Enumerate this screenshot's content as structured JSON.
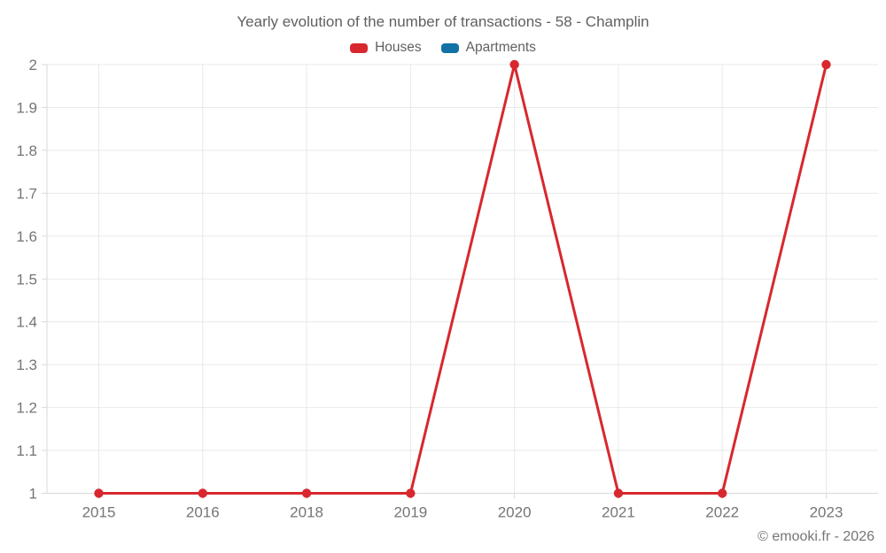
{
  "chart_data": {
    "type": "line",
    "title": "Yearly evolution of the number of transactions - 58 - Champlin",
    "categories": [
      "2015",
      "2016",
      "2018",
      "2019",
      "2020",
      "2021",
      "2022",
      "2023"
    ],
    "series": [
      {
        "name": "Houses",
        "color": "#d7282e",
        "values": [
          1,
          1,
          1,
          1,
          2,
          1,
          1,
          2
        ]
      },
      {
        "name": "Apartments",
        "color": "#1271a5",
        "values": []
      }
    ],
    "ylim": [
      1,
      2
    ],
    "yticks": [
      "1",
      "1.1",
      "1.2",
      "1.3",
      "1.4",
      "1.5",
      "1.6",
      "1.7",
      "1.8",
      "1.9",
      "2"
    ],
    "grid": true,
    "legend_position": "top",
    "marker_radius": 5.2,
    "line_width": 3,
    "colors": {
      "grid": "#e9e9e9",
      "axis": "#d9d9d9",
      "tick_label": "#757575",
      "title": "#5f6062",
      "legend_label": "#616161",
      "copyright": "#757575"
    },
    "copyright": "© emooki.fr - 2026"
  }
}
